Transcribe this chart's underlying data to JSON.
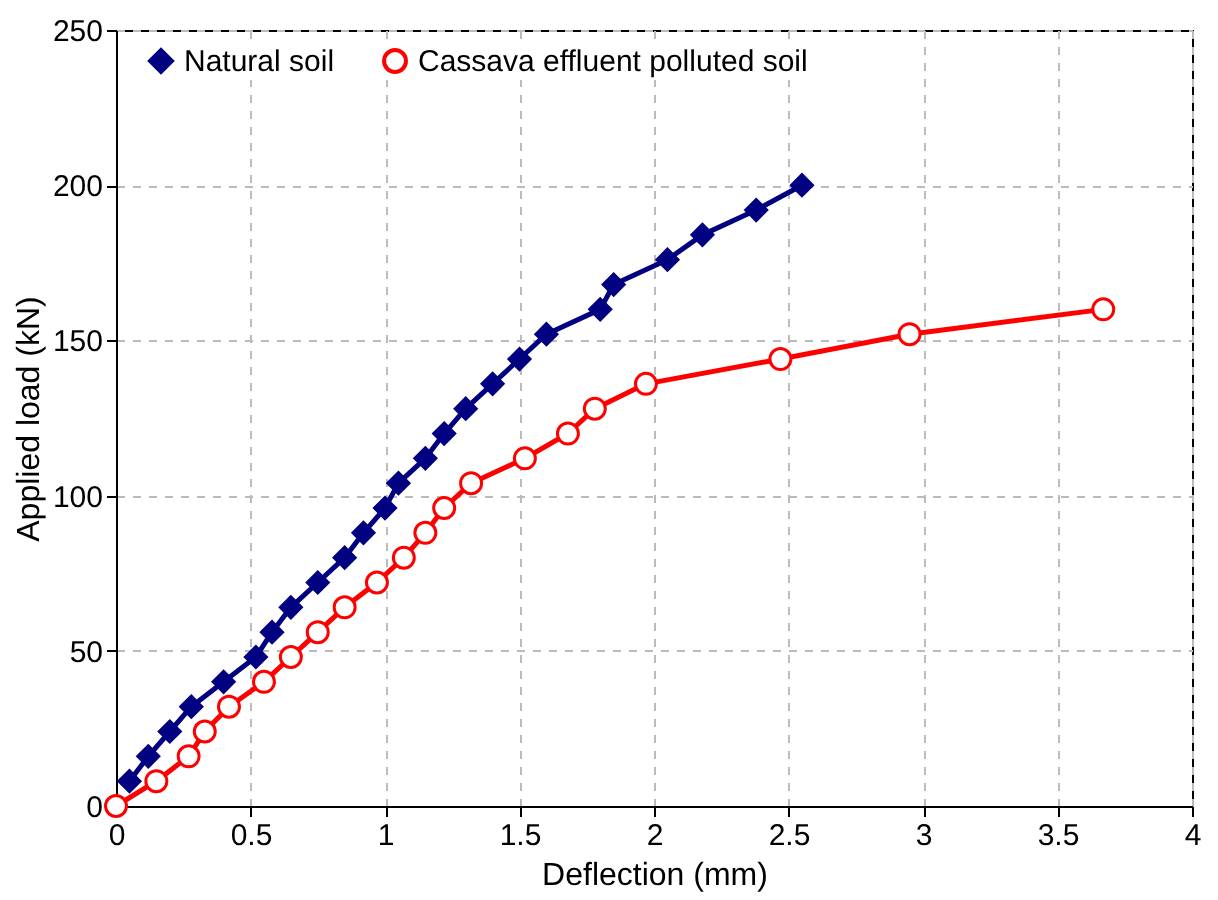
{
  "chart_data": {
    "type": "line",
    "xlabel": "Deflection (mm)",
    "ylabel": "Applied load (kN)",
    "xlim": [
      0,
      4
    ],
    "xticks": [
      0,
      0.5,
      1,
      1.5,
      2,
      2.5,
      3,
      3.5,
      4
    ],
    "ylim": [
      0,
      250
    ],
    "yticks": [
      0,
      50,
      100,
      150,
      200,
      250
    ],
    "grid": true,
    "legend": "top",
    "series": [
      {
        "name": "Natural soil",
        "color": "#000080",
        "marker": "diamond",
        "x": [
          0.05,
          0.12,
          0.2,
          0.28,
          0.4,
          0.52,
          0.58,
          0.65,
          0.75,
          0.85,
          0.92,
          1.0,
          1.05,
          1.15,
          1.22,
          1.3,
          1.4,
          1.5,
          1.6,
          1.8,
          1.85,
          2.05,
          2.18,
          2.38,
          2.55
        ],
        "values": [
          8,
          16,
          24,
          32,
          40,
          48,
          56,
          64,
          72,
          80,
          88,
          96,
          104,
          112,
          120,
          128,
          136,
          144,
          152,
          160,
          168,
          176,
          184,
          192,
          200
        ]
      },
      {
        "name": "Cassava effluent polluted soil",
        "color": "#ff0000",
        "marker": "circle",
        "x": [
          0,
          0.15,
          0.27,
          0.33,
          0.42,
          0.55,
          0.65,
          0.75,
          0.85,
          0.97,
          1.07,
          1.15,
          1.22,
          1.32,
          1.52,
          1.68,
          1.78,
          1.97,
          2.47,
          2.95,
          3.67
        ],
        "values": [
          0,
          8,
          16,
          24,
          32,
          40,
          48,
          56,
          64,
          72,
          80,
          88,
          96,
          104,
          112,
          120,
          128,
          136,
          144,
          152,
          160
        ]
      }
    ]
  }
}
